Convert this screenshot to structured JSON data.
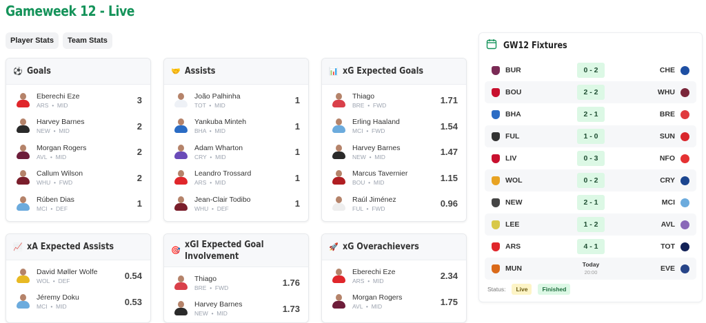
{
  "header": {
    "title": "Gameweek 12 - Live"
  },
  "tabs": [
    {
      "label": "Player Stats"
    },
    {
      "label": "Team Stats"
    }
  ],
  "cards": {
    "goals": {
      "title": "Goals",
      "icon": "soccer-ball-icon",
      "players": [
        {
          "name": "Eberechi Eze",
          "team": "ARS",
          "pos": "MID",
          "value": "3",
          "kit": "#e0262b"
        },
        {
          "name": "Harvey Barnes",
          "team": "NEW",
          "pos": "MID",
          "value": "2",
          "kit": "#2a2a2a"
        },
        {
          "name": "Morgan Rogers",
          "team": "AVL",
          "pos": "MID",
          "value": "2",
          "kit": "#6d1d3a"
        },
        {
          "name": "Callum Wilson",
          "team": "WHU",
          "pos": "FWD",
          "value": "2",
          "kit": "#7a1e2b"
        },
        {
          "name": "Rúben Dias",
          "team": "MCI",
          "pos": "DEF",
          "value": "1",
          "kit": "#6cabdd"
        }
      ]
    },
    "assists": {
      "title": "Assists",
      "icon": "handshake-icon",
      "players": [
        {
          "name": "João Palhinha",
          "team": "TOT",
          "pos": "MID",
          "value": "1",
          "kit": "#eef1f6"
        },
        {
          "name": "Yankuba Minteh",
          "team": "BHA",
          "pos": "MID",
          "value": "1",
          "kit": "#2b6cc4"
        },
        {
          "name": "Adam Wharton",
          "team": "CRY",
          "pos": "MID",
          "value": "1",
          "kit": "#6a4bb8"
        },
        {
          "name": "Leandro Trossard",
          "team": "ARS",
          "pos": "MID",
          "value": "1",
          "kit": "#e0262b"
        },
        {
          "name": "Jean-Clair Todibo",
          "team": "WHU",
          "pos": "DEF",
          "value": "1",
          "kit": "#7a1e2b"
        }
      ]
    },
    "xg": {
      "title": "xG Expected Goals",
      "icon": "bar-chart-icon",
      "players": [
        {
          "name": "Thiago",
          "team": "BRE",
          "pos": "FWD",
          "value": "1.71",
          "kit": "#d9404a"
        },
        {
          "name": "Erling Haaland",
          "team": "MCI",
          "pos": "FWD",
          "value": "1.54",
          "kit": "#6cabdd"
        },
        {
          "name": "Harvey Barnes",
          "team": "NEW",
          "pos": "MID",
          "value": "1.47",
          "kit": "#2a2a2a"
        },
        {
          "name": "Marcus Tavernier",
          "team": "BOU",
          "pos": "MID",
          "value": "1.15",
          "kit": "#b01e22"
        },
        {
          "name": "Raúl Jiménez",
          "team": "FUL",
          "pos": "FWD",
          "value": "0.96",
          "kit": "#eeeeee"
        }
      ]
    },
    "xa": {
      "title": "xA Expected Assists",
      "icon": "trend-chart-icon",
      "players": [
        {
          "name": "David Møller Wolfe",
          "team": "WOL",
          "pos": "DEF",
          "value": "0.54",
          "kit": "#e8b923"
        },
        {
          "name": "Jéremy Doku",
          "team": "MCI",
          "pos": "MID",
          "value": "0.53",
          "kit": "#6cabdd"
        }
      ]
    },
    "xgi": {
      "title": "xGI Expected Goal Involvement",
      "title_line1": "xGI Expected Goal",
      "title_line2": "Involvement",
      "icon": "target-icon",
      "players": [
        {
          "name": "Thiago",
          "team": "BRE",
          "pos": "FWD",
          "value": "1.76",
          "kit": "#d9404a"
        },
        {
          "name": "Harvey Barnes",
          "team": "NEW",
          "pos": "MID",
          "value": "1.73",
          "kit": "#2a2a2a"
        }
      ]
    },
    "overachievers": {
      "title": "xG Overachievers",
      "icon": "rocket-icon",
      "players": [
        {
          "name": "Eberechi Eze",
          "team": "ARS",
          "pos": "MID",
          "value": "2.34",
          "kit": "#e0262b"
        },
        {
          "name": "Morgan Rogers",
          "team": "AVL",
          "pos": "MID",
          "value": "1.75",
          "kit": "#6d1d3a"
        }
      ]
    }
  },
  "fixtures": {
    "title": "GW12 Fixtures",
    "matches": [
      {
        "home": "BUR",
        "away": "CHE",
        "score": "0 - 2",
        "home_color": "#7a2a55",
        "away_color": "#1e4fa3"
      },
      {
        "home": "BOU",
        "away": "WHU",
        "score": "2 - 2",
        "home_color": "#c8102e",
        "away_color": "#7a263a"
      },
      {
        "home": "BHA",
        "away": "BRE",
        "score": "2 - 1",
        "home_color": "#2b6cc4",
        "away_color": "#e03a3e"
      },
      {
        "home": "FUL",
        "away": "SUN",
        "score": "1 - 0",
        "home_color": "#333333",
        "away_color": "#d9262c"
      },
      {
        "home": "LIV",
        "away": "NFO",
        "score": "0 - 3",
        "home_color": "#c8102e",
        "away_color": "#e53233"
      },
      {
        "home": "WOL",
        "away": "CRY",
        "score": "0 - 2",
        "home_color": "#e8a323",
        "away_color": "#1b458f"
      },
      {
        "home": "NEW",
        "away": "MCI",
        "score": "2 - 1",
        "home_color": "#444444",
        "away_color": "#6cabdd"
      },
      {
        "home": "LEE",
        "away": "AVL",
        "score": "1 - 2",
        "home_color": "#d8c848",
        "away_color": "#8a68b8"
      },
      {
        "home": "ARS",
        "away": "TOT",
        "score": "4 - 1",
        "home_color": "#e0262b",
        "away_color": "#132257"
      },
      {
        "home": "MUN",
        "away": "EVE",
        "score": null,
        "date": "Today",
        "time": "20:00",
        "home_color": "#da6a1a",
        "away_color": "#274488"
      }
    ],
    "status_label": "Status:",
    "legend": {
      "live": "Live",
      "finished": "Finished"
    }
  },
  "colors": {
    "accent": "#15935a",
    "score_bg": "#dcf8e5",
    "live_bg": "#fdf4c6"
  }
}
